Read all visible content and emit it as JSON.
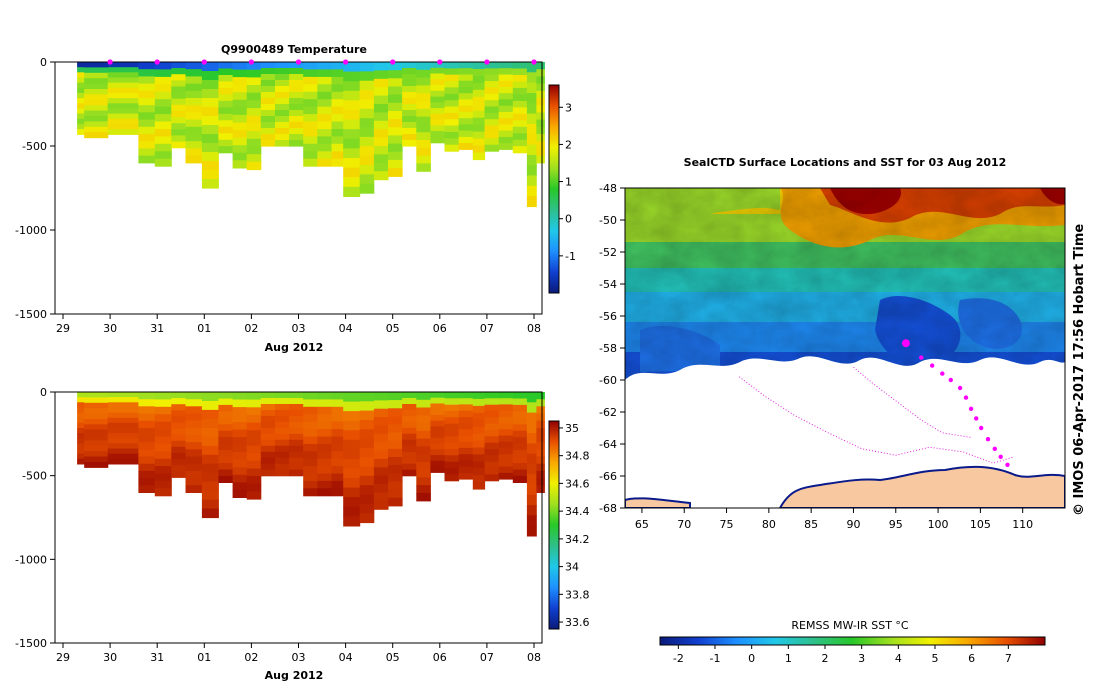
{
  "chart_data": [
    {
      "type": "heatmap",
      "title": "Q9900489  Temperature",
      "variable": "temperature",
      "xlabel": "Aug 2012",
      "x_ticks": [
        "29",
        "30",
        "31",
        "01",
        "02",
        "03",
        "04",
        "05",
        "06",
        "07",
        "08"
      ],
      "y_ticks": [
        "0",
        "-500",
        "-1000",
        "-1500"
      ],
      "ylim": [
        -1500,
        0
      ],
      "colorbar": {
        "min": -2,
        "max": 3.6,
        "ticks": [
          "3",
          "2",
          "1",
          "0",
          "-1"
        ],
        "tick_values": [
          3,
          2,
          1,
          0,
          -1
        ]
      },
      "profiles": [
        {
          "time": 0.3,
          "bottom": -430
        },
        {
          "time": 0.45,
          "bottom": -450
        },
        {
          "time": 0.95,
          "bottom": -430
        },
        {
          "time": 1.6,
          "bottom": -600
        },
        {
          "time": 1.95,
          "bottom": -620
        },
        {
          "time": 2.3,
          "bottom": -510
        },
        {
          "time": 2.6,
          "bottom": -600
        },
        {
          "time": 2.95,
          "bottom": -750
        },
        {
          "time": 3.3,
          "bottom": -540
        },
        {
          "time": 3.6,
          "bottom": -630
        },
        {
          "time": 3.9,
          "bottom": -640
        },
        {
          "time": 4.2,
          "bottom": -500
        },
        {
          "time": 4.5,
          "bottom": -500
        },
        {
          "time": 4.8,
          "bottom": -500
        },
        {
          "time": 5.1,
          "bottom": -620
        },
        {
          "time": 5.4,
          "bottom": -620
        },
        {
          "time": 5.7,
          "bottom": -620
        },
        {
          "time": 5.95,
          "bottom": -800
        },
        {
          "time": 6.3,
          "bottom": -780
        },
        {
          "time": 6.6,
          "bottom": -700
        },
        {
          "time": 6.9,
          "bottom": -680
        },
        {
          "time": 7.2,
          "bottom": -500
        },
        {
          "time": 7.5,
          "bottom": -650
        },
        {
          "time": 7.8,
          "bottom": -480
        },
        {
          "time": 8.1,
          "bottom": -530
        },
        {
          "time": 8.4,
          "bottom": -520
        },
        {
          "time": 8.7,
          "bottom": -580
        },
        {
          "time": 8.95,
          "bottom": -530
        },
        {
          "time": 9.25,
          "bottom": -520
        },
        {
          "time": 9.55,
          "bottom": -540
        },
        {
          "time": 9.85,
          "bottom": -860
        },
        {
          "time": 10.05,
          "bottom": -600
        }
      ],
      "profile_markers": [
        1,
        2,
        3,
        4,
        5,
        6,
        7,
        8,
        9,
        10
      ]
    },
    {
      "type": "heatmap",
      "title": "",
      "variable": "salinity",
      "xlabel": "Aug 2012",
      "x_ticks": [
        "29",
        "30",
        "31",
        "01",
        "02",
        "03",
        "04",
        "05",
        "06",
        "07",
        "08"
      ],
      "y_ticks": [
        "0",
        "-500",
        "-1000",
        "-1500"
      ],
      "ylim": [
        -1500,
        0
      ],
      "colorbar": {
        "min": 33.55,
        "max": 35.05,
        "ticks": [
          "35",
          "34.8",
          "34.6",
          "34.4",
          "34.2",
          "34",
          "33.8",
          "33.6"
        ],
        "tick_values": [
          35,
          34.8,
          34.6,
          34.4,
          34.2,
          34,
          33.8,
          33.6
        ]
      }
    },
    {
      "type": "heatmap",
      "title": "SealCTD Surface Locations and SST for 03 Aug 2012",
      "xlabel": "",
      "ylabel": "",
      "xlim": [
        63,
        115
      ],
      "ylim": [
        -68,
        -48
      ],
      "x_ticks": [
        "65",
        "70",
        "75",
        "80",
        "85",
        "90",
        "95",
        "100",
        "105",
        "110"
      ],
      "x_tick_values": [
        65,
        70,
        75,
        80,
        85,
        90,
        95,
        100,
        105,
        110
      ],
      "y_ticks": [
        "-48",
        "-50",
        "-52",
        "-54",
        "-56",
        "-58",
        "-60",
        "-62",
        "-64",
        "-66",
        "-68"
      ],
      "y_tick_values": [
        -48,
        -50,
        -52,
        -54,
        -56,
        -58,
        -60,
        -62,
        -64,
        -66,
        -68
      ],
      "current_position": {
        "lon": 96.2,
        "lat": -57.7
      },
      "track_recent": [
        {
          "lon": 98.0,
          "lat": -58.6
        },
        {
          "lon": 99.3,
          "lat": -59.1
        },
        {
          "lon": 100.5,
          "lat": -59.6
        },
        {
          "lon": 101.5,
          "lat": -60.0
        },
        {
          "lon": 102.6,
          "lat": -60.5
        },
        {
          "lon": 103.3,
          "lat": -61.1
        },
        {
          "lon": 103.9,
          "lat": -61.8
        },
        {
          "lon": 104.5,
          "lat": -62.4
        },
        {
          "lon": 105.1,
          "lat": -63.0
        },
        {
          "lon": 105.9,
          "lat": -63.7
        },
        {
          "lon": 106.7,
          "lat": -64.3
        },
        {
          "lon": 107.4,
          "lat": -64.8
        },
        {
          "lon": 108.2,
          "lat": -65.3
        }
      ],
      "track_old": [
        {
          "lon": 76.5,
          "lat": -59.8
        },
        {
          "lon": 79.5,
          "lat": -61.0
        },
        {
          "lon": 83.0,
          "lat": -62.2
        },
        {
          "lon": 87.0,
          "lat": -63.3
        },
        {
          "lon": 91.0,
          "lat": -64.3
        },
        {
          "lon": 95.0,
          "lat": -64.7
        },
        {
          "lon": 99.0,
          "lat": -64.2
        },
        {
          "lon": 103.0,
          "lat": -64.5
        },
        {
          "lon": 106.5,
          "lat": -65.2
        },
        {
          "lon": 109.0,
          "lat": -64.8
        }
      ],
      "track_old_2": [
        {
          "lon": 90.0,
          "lat": -59.2
        },
        {
          "lon": 92.5,
          "lat": -60.3
        },
        {
          "lon": 95.5,
          "lat": -61.5
        },
        {
          "lon": 98.0,
          "lat": -62.5
        },
        {
          "lon": 100.5,
          "lat": -63.3
        },
        {
          "lon": 104.0,
          "lat": -63.6
        }
      ],
      "colorbar": {
        "label": "REMSS MW-IR SST °C",
        "min": -2.5,
        "max": 8.0,
        "ticks": [
          "-2",
          "-1",
          "0",
          "1",
          "2",
          "3",
          "4",
          "5",
          "6",
          "7"
        ],
        "tick_values": [
          -2,
          -1,
          0,
          1,
          2,
          3,
          4,
          5,
          6,
          7
        ]
      },
      "credit": "© IMOS 06-Apr-2017 17:56 Hobart Time"
    }
  ],
  "colors": {
    "land": "#f8c9a0",
    "coast": "#0a1a8a",
    "track": "#e020e0",
    "marker": "#ff00ff"
  }
}
